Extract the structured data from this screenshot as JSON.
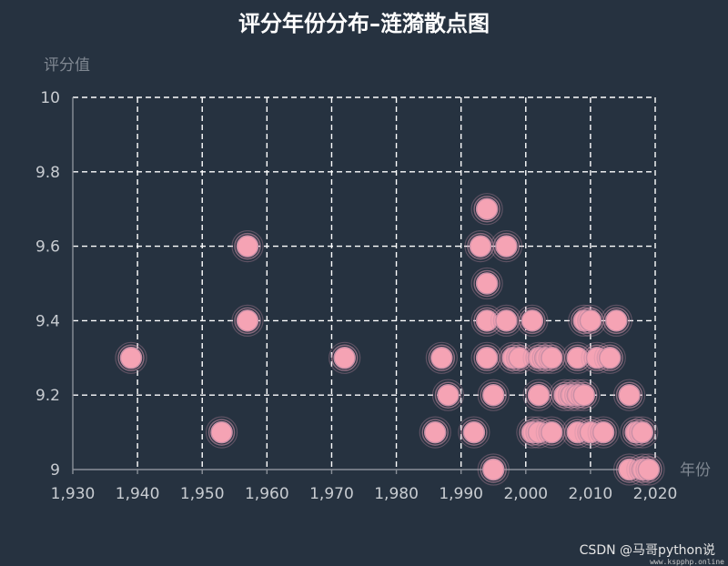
{
  "chart_data": {
    "type": "scatter",
    "title": "评分年份分布–涟漪散点图",
    "xlabel": "年份",
    "ylabel": "评分值",
    "xlim": [
      1930,
      2020
    ],
    "ylim": [
      9,
      10
    ],
    "x_ticks": [
      1930,
      1940,
      1950,
      1960,
      1970,
      1980,
      1990,
      2000,
      2010,
      2020
    ],
    "x_tick_labels": [
      "1,930",
      "1,940",
      "1,950",
      "1,960",
      "1,970",
      "1,980",
      "1,990",
      "2,000",
      "2,010",
      "2,020"
    ],
    "y_ticks": [
      9,
      9.2,
      9.4,
      9.6,
      9.8,
      10
    ],
    "y_tick_labels": [
      "9",
      "9.2",
      "9.4",
      "9.6",
      "9.8",
      "10"
    ],
    "grid": true,
    "effect": "ripple",
    "colors": {
      "point": "#f5a3b4",
      "ripple": "#c98fa6",
      "background": "#263240"
    },
    "points": [
      [
        1939,
        9.3
      ],
      [
        1953,
        9.1
      ],
      [
        1957,
        9.6
      ],
      [
        1957,
        9.4
      ],
      [
        1972,
        9.3
      ],
      [
        1986,
        9.1
      ],
      [
        1987,
        9.3
      ],
      [
        1988,
        9.2
      ],
      [
        1992,
        9.1
      ],
      [
        1993,
        9.6
      ],
      [
        1994,
        9.7
      ],
      [
        1994,
        9.5
      ],
      [
        1994,
        9.4
      ],
      [
        1994,
        9.3
      ],
      [
        1995,
        9.2
      ],
      [
        1995,
        9.0
      ],
      [
        1997,
        9.6
      ],
      [
        1997,
        9.4
      ],
      [
        1998,
        9.3
      ],
      [
        1999,
        9.3
      ],
      [
        2001,
        9.4
      ],
      [
        2001,
        9.1
      ],
      [
        2002,
        9.3
      ],
      [
        2002,
        9.2
      ],
      [
        2002,
        9.1
      ],
      [
        2003,
        9.3
      ],
      [
        2004,
        9.3
      ],
      [
        2004,
        9.1
      ],
      [
        2006,
        9.2
      ],
      [
        2007,
        9.2
      ],
      [
        2008,
        9.3
      ],
      [
        2008,
        9.2
      ],
      [
        2008,
        9.1
      ],
      [
        2009,
        9.4
      ],
      [
        2009,
        9.2
      ],
      [
        2010,
        9.4
      ],
      [
        2010,
        9.1
      ],
      [
        2011,
        9.3
      ],
      [
        2012,
        9.1
      ],
      [
        2013,
        9.3
      ],
      [
        2014,
        9.4
      ],
      [
        2016,
        9.2
      ],
      [
        2016,
        9.0
      ],
      [
        2017,
        9.1
      ],
      [
        2018,
        9.0
      ],
      [
        2018,
        9.1
      ],
      [
        2019,
        9.0
      ]
    ]
  },
  "watermark": "CSDN @马哥python说",
  "watermark_small": "www.kspphp.online"
}
